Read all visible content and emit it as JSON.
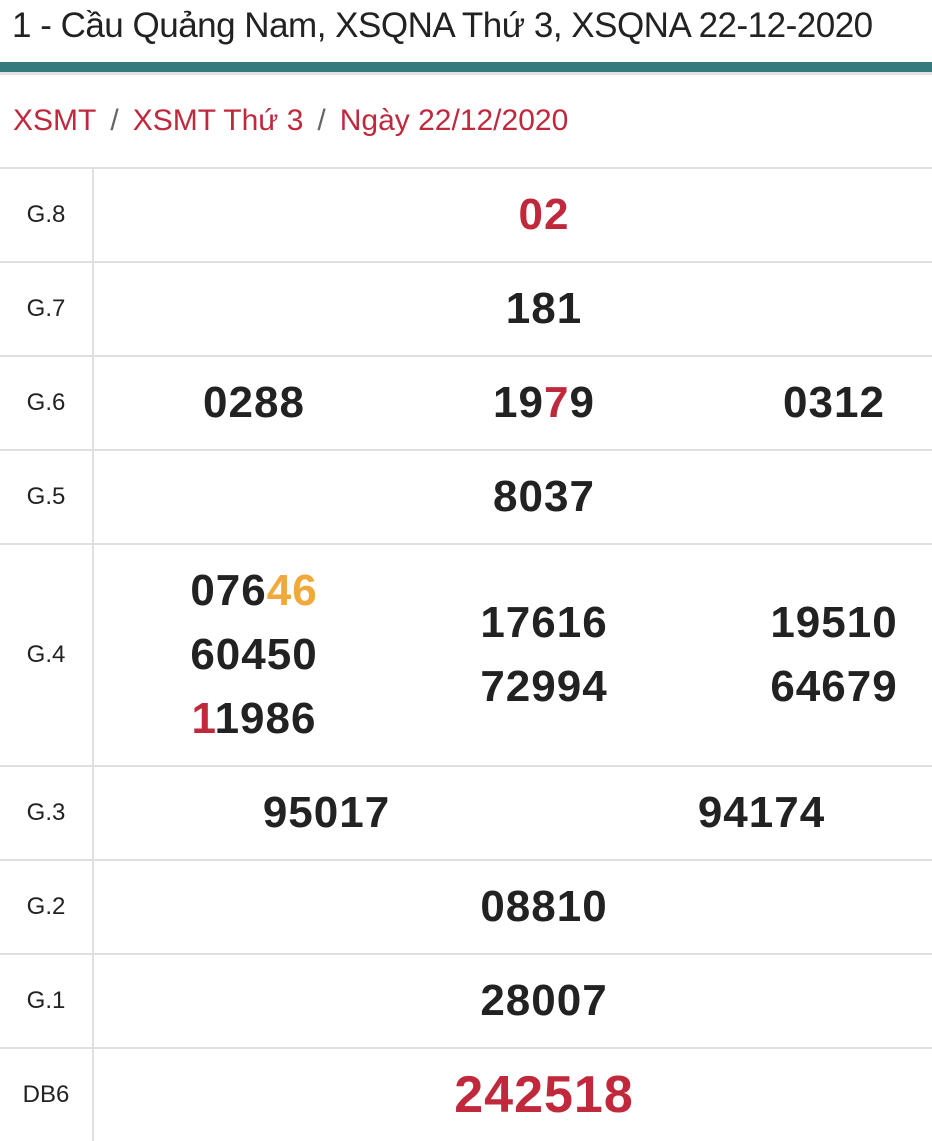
{
  "page_title": "1 - Cầu Quảng Nam, XSQNA Thứ 3, XSQNA 22-12-2020",
  "colors": {
    "accent_bar": "#367a80",
    "link": "#c0283c",
    "highlight_red": "#c0283c",
    "highlight_orange": "#f2a93b"
  },
  "breadcrumb": [
    {
      "label": "XSMT"
    },
    {
      "label": "XSMT Thứ 3"
    },
    {
      "label": "Ngày 22/12/2020"
    }
  ],
  "breadcrumb_separator": "/",
  "prizes": [
    {
      "label": "G.8",
      "cols": 1,
      "numbers": [
        {
          "pre": "",
          "mark": "02",
          "post": "",
          "mark_color": "#c0283c",
          "all_red": true
        }
      ]
    },
    {
      "label": "G.7",
      "cols": 1,
      "numbers": [
        {
          "pre": "181",
          "mark": "",
          "post": ""
        }
      ]
    },
    {
      "label": "G.6",
      "cols": 3,
      "numbers": [
        {
          "pre": "0288",
          "mark": "",
          "post": ""
        },
        {
          "pre": "19",
          "mark": "7",
          "post": "9",
          "mark_color": "#c0283c"
        },
        {
          "pre": "0312",
          "mark": "",
          "post": ""
        }
      ]
    },
    {
      "label": "G.5",
      "cols": 1,
      "numbers": [
        {
          "pre": "8037",
          "mark": "",
          "post": ""
        }
      ]
    },
    {
      "label": "G.4",
      "cols": 3,
      "tall": true,
      "numbers": [
        {
          "pre": "076",
          "mark": "46",
          "post": "",
          "mark_color": "#f2a93b"
        },
        {
          "pre": "60450",
          "mark": "",
          "post": ""
        },
        {
          "pre": "",
          "mark": "1",
          "post": "1986",
          "mark_color": "#c0283c"
        },
        {
          "pre": "17616",
          "mark": "",
          "post": ""
        },
        {
          "pre": "72994",
          "mark": "",
          "post": ""
        },
        {
          "pre": "19510",
          "mark": "",
          "post": ""
        },
        {
          "pre": "64679",
          "mark": "",
          "post": ""
        }
      ]
    },
    {
      "label": "G.3",
      "cols": 2,
      "numbers": [
        {
          "pre": "95017",
          "mark": "",
          "post": ""
        },
        {
          "pre": "94174",
          "mark": "",
          "post": ""
        }
      ]
    },
    {
      "label": "G.2",
      "cols": 1,
      "numbers": [
        {
          "pre": "08810",
          "mark": "",
          "post": ""
        }
      ]
    },
    {
      "label": "G.1",
      "cols": 1,
      "numbers": [
        {
          "pre": "28007",
          "mark": "",
          "post": ""
        }
      ]
    },
    {
      "label": "DB6",
      "cols": 1,
      "special": true,
      "numbers": [
        {
          "pre": "",
          "mark": "242518",
          "post": "",
          "mark_color": "#c0283c"
        }
      ]
    }
  ]
}
